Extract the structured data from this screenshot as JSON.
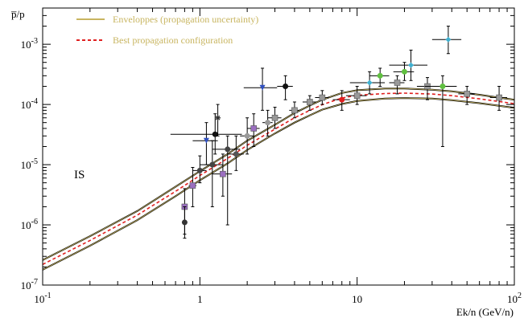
{
  "chart_data": {
    "type": "line",
    "title": "",
    "ylabel": "p̅/p",
    "xlabel": "Ek/n (GeV/n)",
    "xscale": "log",
    "yscale": "log",
    "xlim": [
      0.1,
      100
    ],
    "ylim": [
      1e-07,
      0.004
    ],
    "grid": false,
    "legend_position": "top-left",
    "annotation": "IS",
    "x_ticks": [
      {
        "value": 0.1,
        "label": "10",
        "exp": "-1"
      },
      {
        "value": 1,
        "label": "1",
        "exp": ""
      },
      {
        "value": 10,
        "label": "10",
        "exp": ""
      },
      {
        "value": 100,
        "label": "10",
        "exp": "2"
      }
    ],
    "y_ticks": [
      {
        "value": 1e-07,
        "label": "10",
        "exp": "-7"
      },
      {
        "value": 1e-06,
        "label": "10",
        "exp": "-6"
      },
      {
        "value": 1e-05,
        "label": "10",
        "exp": "-5"
      },
      {
        "value": 0.0001,
        "label": "10",
        "exp": "-4"
      },
      {
        "value": 0.001,
        "label": "10",
        "exp": "-3"
      }
    ],
    "series": [
      {
        "name": "Enveloppes (propagation uncertainty)",
        "role": "envelope",
        "color": "#c8b560",
        "upper": [
          [
            0.1,
            2.6e-07
          ],
          [
            0.2,
            6.5e-07
          ],
          [
            0.4,
            1.7e-06
          ],
          [
            0.7,
            4.3e-06
          ],
          [
            1,
            7.8e-06
          ],
          [
            1.5,
            1.5e-05
          ],
          [
            2,
            2.5e-05
          ],
          [
            3,
            4.6e-05
          ],
          [
            4,
            7.2e-05
          ],
          [
            5,
            9.6e-05
          ],
          [
            6,
            0.00012
          ],
          [
            8,
            0.000155
          ],
          [
            10,
            0.000172
          ],
          [
            15,
            0.000184
          ],
          [
            20,
            0.000184
          ],
          [
            30,
            0.000176
          ],
          [
            40,
            0.000165
          ],
          [
            60,
            0.000145
          ],
          [
            80,
            0.00013
          ],
          [
            100,
            0.00012
          ]
        ],
        "lower": [
          [
            0.1,
            1.8e-07
          ],
          [
            0.2,
            4.5e-07
          ],
          [
            0.4,
            1.2e-06
          ],
          [
            0.7,
            3e-06
          ],
          [
            1,
            5.5e-06
          ],
          [
            1.5,
            1.05e-05
          ],
          [
            2,
            1.75e-05
          ],
          [
            3,
            3.3e-05
          ],
          [
            4,
            5e-05
          ],
          [
            5,
            6.6e-05
          ],
          [
            6,
            8.2e-05
          ],
          [
            8,
            0.000102
          ],
          [
            10,
            0.000114
          ],
          [
            15,
            0.000125
          ],
          [
            20,
            0.000128
          ],
          [
            30,
            0.000125
          ],
          [
            40,
            0.000118
          ],
          [
            60,
            0.000105
          ],
          [
            80,
            9.5e-05
          ],
          [
            100,
            8.8e-05
          ]
        ]
      },
      {
        "name": "Best propagation configuration",
        "role": "best",
        "color": "#e02020",
        "points": [
          [
            0.1,
            2.2e-07
          ],
          [
            0.2,
            5.5e-07
          ],
          [
            0.4,
            1.45e-06
          ],
          [
            0.7,
            3.6e-06
          ],
          [
            1,
            6.6e-06
          ],
          [
            1.5,
            1.27e-05
          ],
          [
            2,
            2.1e-05
          ],
          [
            3,
            3.9e-05
          ],
          [
            4,
            6e-05
          ],
          [
            5,
            8e-05
          ],
          [
            6,
            9.9e-05
          ],
          [
            8,
            0.000128
          ],
          [
            10,
            0.000142
          ],
          [
            15,
            0.000152
          ],
          [
            20,
            0.000154
          ],
          [
            30,
            0.000149
          ],
          [
            40,
            0.00014
          ],
          [
            60,
            0.000124
          ],
          [
            80,
            0.000112
          ],
          [
            100,
            0.000103
          ]
        ]
      }
    ],
    "data_points": [
      {
        "x": 0.8,
        "y": 2e-06,
        "xerr": 0.03,
        "ylo": 7e-07,
        "yhi": 4e-06,
        "marker": "square",
        "color": "#9b6fc0"
      },
      {
        "x": 0.8,
        "y": 1.1e-06,
        "xerr": 0,
        "ylo": 6e-07,
        "yhi": 2e-06,
        "marker": "dot",
        "color": "#333333"
      },
      {
        "x": 0.9,
        "y": 4.5e-06,
        "xerr": 0.05,
        "ylo": 2e-06,
        "yhi": 9e-06,
        "marker": "square",
        "color": "#9b6fc0"
      },
      {
        "x": 1.0,
        "y": 8e-06,
        "xerr": 0.1,
        "ylo": 5e-06,
        "yhi": 1.4e-05,
        "marker": "dot",
        "color": "#444444"
      },
      {
        "x": 1.1,
        "y": 2.5e-05,
        "xerr": 0.2,
        "ylo": 1e-05,
        "yhi": 5e-05,
        "marker": "triangle-down",
        "color": "#3050c0"
      },
      {
        "x": 1.2,
        "y": 1e-05,
        "xerr": 0.2,
        "ylo": 2e-06,
        "yhi": 2.5e-05,
        "marker": "dot",
        "color": "#444444"
      },
      {
        "x": 1.25,
        "y": 3.2e-05,
        "xerr": 0.6,
        "ylo": 1.5e-05,
        "yhi": 7e-05,
        "marker": "dot",
        "color": "#111111"
      },
      {
        "x": 1.3,
        "y": 6e-05,
        "xerr": 0,
        "ylo": 3e-05,
        "yhi": 0.0001,
        "marker": "star",
        "color": "#333333"
      },
      {
        "x": 1.4,
        "y": 7e-06,
        "xerr": 0.2,
        "ylo": 3e-06,
        "yhi": 1.5e-05,
        "marker": "square",
        "color": "#9b6fc0"
      },
      {
        "x": 1.5,
        "y": 1.8e-05,
        "xerr": 0.3,
        "ylo": 1e-06,
        "yhi": 3e-05,
        "marker": "dot",
        "color": "#444444"
      },
      {
        "x": 1.7,
        "y": 1.5e-05,
        "xerr": 0.2,
        "ylo": 8e-06,
        "yhi": 3e-05,
        "marker": "dot",
        "color": "#555555"
      },
      {
        "x": 2.0,
        "y": 3e-05,
        "xerr": 0.2,
        "ylo": 1.5e-05,
        "yhi": 6e-05,
        "marker": "dot",
        "color": "#999999"
      },
      {
        "x": 2.2,
        "y": 4e-05,
        "xerr": 0.2,
        "ylo": 2e-05,
        "yhi": 7e-05,
        "marker": "square",
        "color": "#9b6fc0"
      },
      {
        "x": 2.5,
        "y": 0.00019,
        "xerr": 0.6,
        "ylo": 8e-05,
        "yhi": 0.0004,
        "marker": "triangle-down",
        "color": "#3050c0"
      },
      {
        "x": 2.7,
        "y": 5e-05,
        "xerr": 0.2,
        "ylo": 3e-05,
        "yhi": 8e-05,
        "marker": "dot",
        "color": "#999999"
      },
      {
        "x": 3.0,
        "y": 6e-05,
        "xerr": 0.3,
        "ylo": 4e-05,
        "yhi": 9e-05,
        "marker": "square",
        "color": "#999999"
      },
      {
        "x": 3.5,
        "y": 0.0002,
        "xerr": 0.4,
        "ylo": 0.00012,
        "yhi": 0.0003,
        "marker": "dot",
        "color": "#111111"
      },
      {
        "x": 4.0,
        "y": 8e-05,
        "xerr": 0.3,
        "ylo": 6e-05,
        "yhi": 0.00011,
        "marker": "square",
        "color": "#999999"
      },
      {
        "x": 5.0,
        "y": 0.00011,
        "xerr": 0.5,
        "ylo": 8e-05,
        "yhi": 0.00014,
        "marker": "square",
        "color": "#999999"
      },
      {
        "x": 6.0,
        "y": 0.00013,
        "xerr": 0.6,
        "ylo": 0.0001,
        "yhi": 0.00017,
        "marker": "square",
        "color": "#999999"
      },
      {
        "x": 8.0,
        "y": 0.00012,
        "xerr": 1.0,
        "ylo": 8e-05,
        "yhi": 0.00017,
        "marker": "dot",
        "color": "#e02020"
      },
      {
        "x": 10.0,
        "y": 0.00014,
        "xerr": 1.5,
        "ylo": 0.0001,
        "yhi": 0.0002,
        "marker": "square",
        "color": "#999999"
      },
      {
        "x": 12.0,
        "y": 0.00023,
        "xerr": 3,
        "ylo": 0.00015,
        "yhi": 0.00035,
        "marker": "diamond",
        "color": "#40b0d0"
      },
      {
        "x": 14.0,
        "y": 0.0003,
        "xerr": 2,
        "ylo": 0.0002,
        "yhi": 0.0004,
        "marker": "dot",
        "color": "#60c040"
      },
      {
        "x": 18.0,
        "y": 0.00023,
        "xerr": 2,
        "ylo": 0.00015,
        "yhi": 0.0003,
        "marker": "square",
        "color": "#999999"
      },
      {
        "x": 20.0,
        "y": 0.00035,
        "xerr": 3,
        "ylo": 0.00025,
        "yhi": 0.0005,
        "marker": "dot",
        "color": "#60c040"
      },
      {
        "x": 22.0,
        "y": 0.00045,
        "xerr": 6,
        "ylo": 0.00025,
        "yhi": 0.0008,
        "marker": "diamond",
        "color": "#40b0d0"
      },
      {
        "x": 28.0,
        "y": 0.0002,
        "xerr": 4,
        "ylo": 0.00012,
        "yhi": 0.00028,
        "marker": "square",
        "color": "#999999"
      },
      {
        "x": 35.0,
        "y": 0.0002,
        "xerr": 8,
        "ylo": 2e-05,
        "yhi": 0.0003,
        "marker": "dot",
        "color": "#60c040"
      },
      {
        "x": 38.0,
        "y": 0.0012,
        "xerr": 8,
        "ylo": 0.0007,
        "yhi": 0.002,
        "marker": "diamond",
        "color": "#40b0d0"
      },
      {
        "x": 50.0,
        "y": 0.00015,
        "xerr": 6,
        "ylo": 0.0001,
        "yhi": 0.0002,
        "marker": "square",
        "color": "#999999"
      },
      {
        "x": 80.0,
        "y": 0.00013,
        "xerr": 10,
        "ylo": 8e-05,
        "yhi": 0.0002,
        "marker": "square",
        "color": "#999999"
      }
    ]
  }
}
